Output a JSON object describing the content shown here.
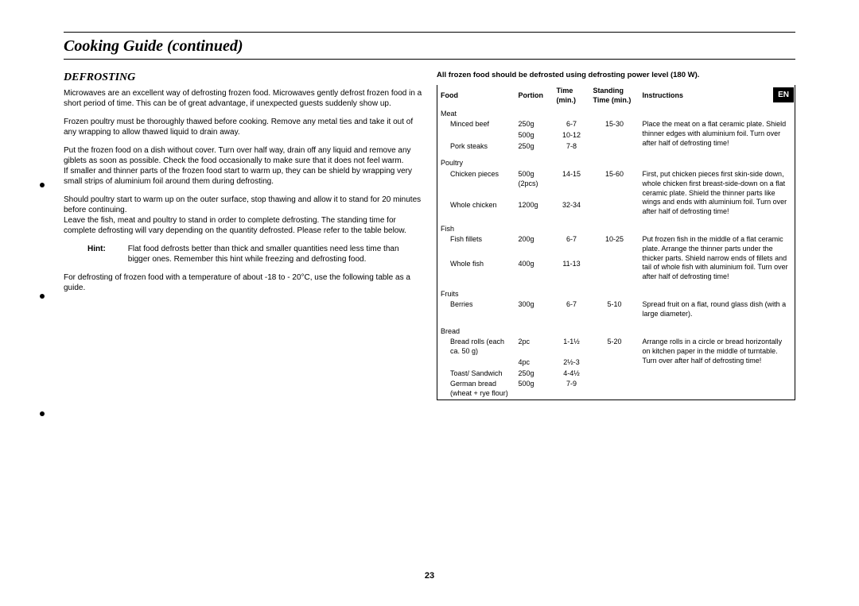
{
  "page": {
    "title": "Cooking Guide (continued)",
    "badge": "EN",
    "page_number": "23"
  },
  "left": {
    "subheading": "DEFROSTING",
    "p1": "Microwaves are an excellent way of defrosting frozen food. Microwaves gently defrost frozen food in a short period of time. This can be of great advantage, if unexpected guests suddenly show up.",
    "p2": "Frozen poultry must be thoroughly thawed before cooking. Remove any metal ties and take it out of any wrapping to allow thawed liquid to drain away.",
    "p3": "Put the frozen food on a dish without cover. Turn over half way, drain off any liquid and remove any giblets as soon as possible. Check the food occasionally to make sure that it does not feel warm.",
    "p4": "If smaller and thinner parts of the frozen food start to warm up, they can be shield by wrapping very small strips of aluminium foil around them during defrosting.",
    "p5": "Should poultry start to warm up on the outer surface, stop thawing and allow it to stand for 20 minutes before continuing.",
    "p6": "Leave the fish, meat and poultry to stand in order to complete defrosting. The standing time for complete defrosting will vary depending on the quantity defrosted. Please refer to the table below.",
    "hint_label": "Hint:",
    "hint_text": "Flat food defrosts better than thick and smaller quantities need less time than bigger ones. Remember this hint while freezing and defrosting food.",
    "p7": "For defrosting of frozen food with a temperature of about -18 to - 20°C, use the following table as a guide."
  },
  "right": {
    "caption": "All frozen food should be defrosted using defrosting power level (180 W).",
    "headers": {
      "food": "Food",
      "portion": "Portion",
      "time": "Time (min.)",
      "standing": "Standing Time (min.)",
      "instructions": "Instructions"
    },
    "sections": [
      {
        "category": "Meat",
        "rows": [
          {
            "food": "Minced beef",
            "portion": "250g",
            "time": "6-7",
            "standing": "15-30",
            "inst": "Place the meat on a flat ceramic plate. Shield thinner edges with aluminium foil. Turn over after half of defrosting time!"
          },
          {
            "food": "",
            "portion": "500g",
            "time": "10-12",
            "standing": "",
            "inst": ""
          },
          {
            "food": "Pork steaks",
            "portion": "250g",
            "time": "7-8",
            "standing": "",
            "inst": ""
          }
        ]
      },
      {
        "category": "Poultry",
        "rows": [
          {
            "food": "Chicken pieces",
            "portion": "500g (2pcs)",
            "time": "14-15",
            "standing": "15-60",
            "inst": "First, put chicken pieces first skin-side down, whole chicken first breast-side-down on a flat ceramic plate. Shield the thinner parts like wings and ends with aluminium foil. Turn over after half of defrosting time!"
          },
          {
            "food": "Whole chicken",
            "portion": "1200g",
            "time": "32-34",
            "standing": "",
            "inst": ""
          }
        ]
      },
      {
        "category": "Fish",
        "rows": [
          {
            "food": "Fish fillets",
            "portion": "200g",
            "time": "6-7",
            "standing": "10-25",
            "inst": "Put frozen fish in the middle of a flat ceramic plate. Arrange the thinner parts under the thicker parts. Shield narrow ends  of fillets and tail of whole fish with aluminium foil. Turn over after half of defrosting time!"
          },
          {
            "food": "Whole fish",
            "portion": "400g",
            "time": "11-13",
            "standing": "",
            "inst": ""
          }
        ]
      },
      {
        "category": "Fruits",
        "rows": [
          {
            "food": "Berries",
            "portion": "300g",
            "time": "6-7",
            "standing": "5-10",
            "inst": "Spread fruit on a flat, round glass dish (with a large diameter)."
          }
        ]
      },
      {
        "category": "Bread",
        "rows": [
          {
            "food": "Bread rolls (each ca. 50 g)",
            "portion": "2pc",
            "time": "1-1½",
            "standing": "5-20",
            "inst": "Arrange rolls in a circle or bread horizontally on kitchen paper in the middle of turntable. Turn over after half of defrosting time!"
          },
          {
            "food": "",
            "portion": "4pc",
            "time": "2½-3",
            "standing": "",
            "inst": ""
          },
          {
            "food": "Toast/ Sandwich",
            "portion": "250g",
            "time": "4-4½",
            "standing": "",
            "inst": ""
          },
          {
            "food": "German bread (wheat + rye flour)",
            "portion": "500g",
            "time": "7-9",
            "standing": "",
            "inst": ""
          }
        ]
      }
    ]
  }
}
